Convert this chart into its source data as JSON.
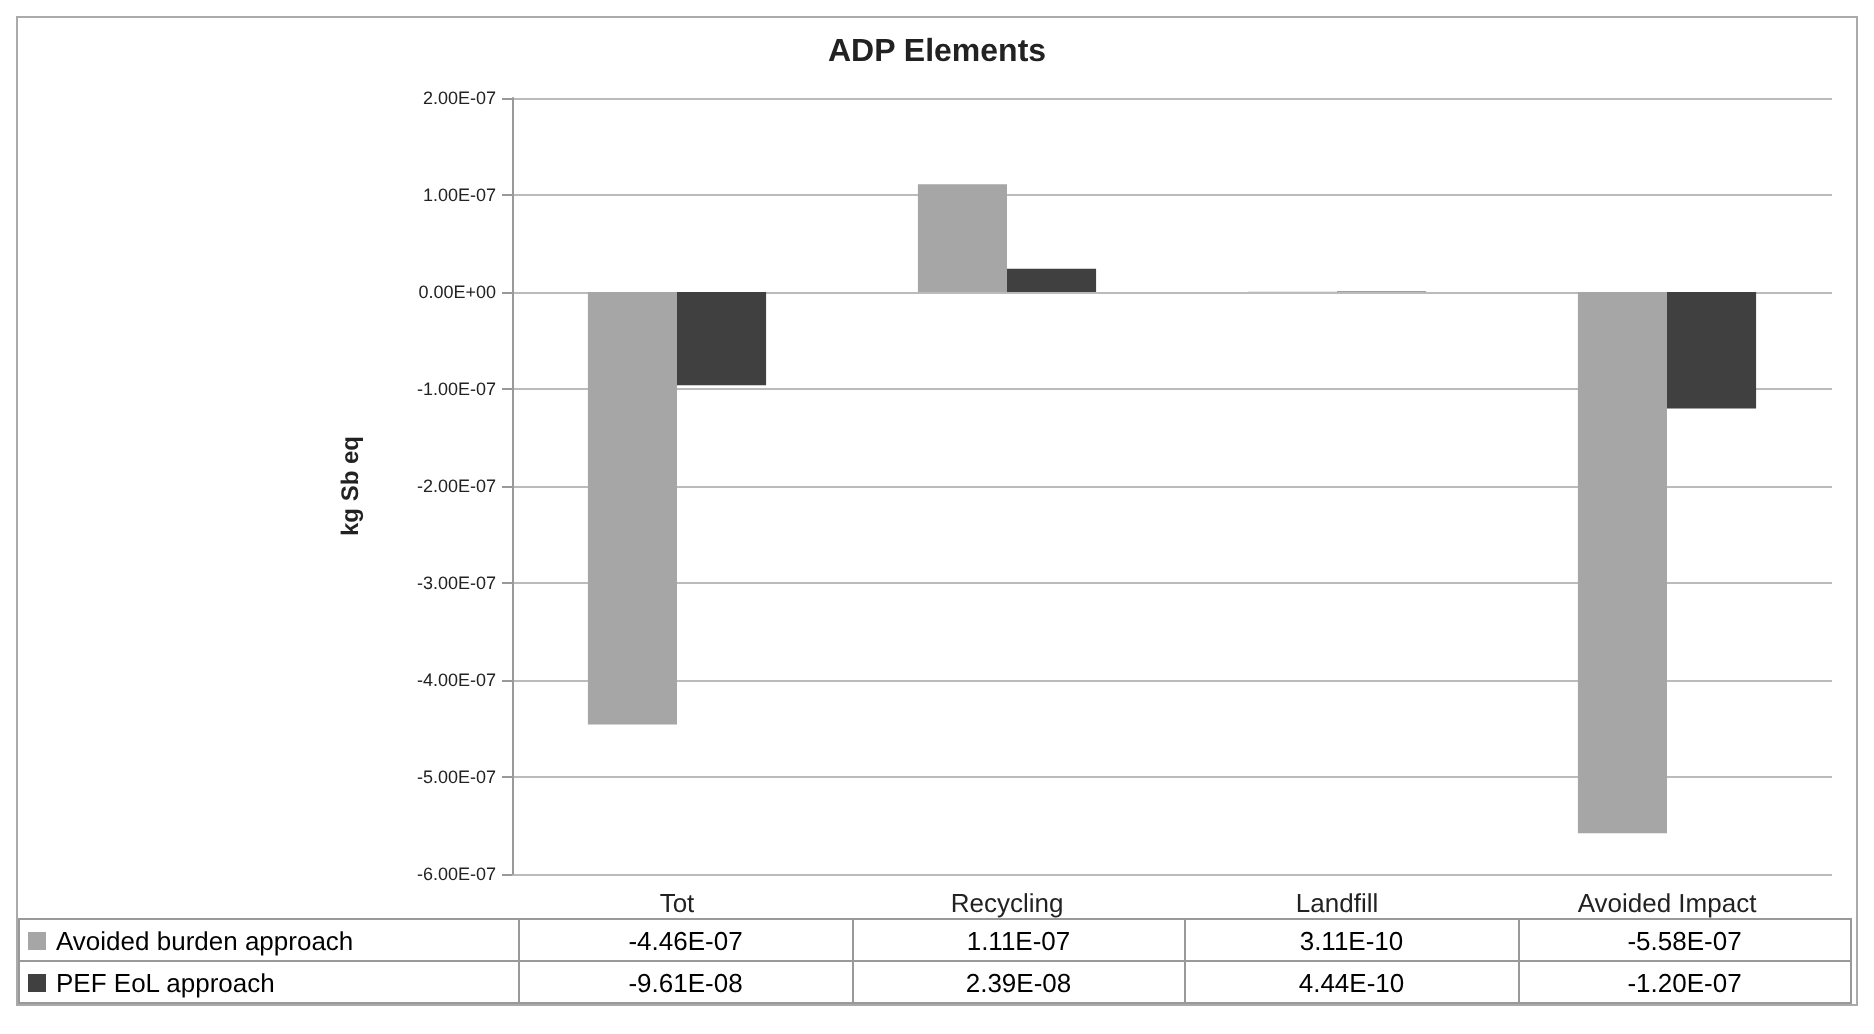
{
  "chart_data": {
    "type": "bar",
    "title": "ADP Elements",
    "ylabel": "kg Sb eq",
    "categories": [
      "Tot",
      "Recycling",
      "Landfill",
      "Avoided Impact"
    ],
    "series": [
      {
        "name": "Avoided burden approach",
        "color": "#a6a6a6",
        "values": [
          -4.46e-07,
          1.11e-07,
          3.11e-10,
          -5.58e-07
        ],
        "value_labels": [
          "-4.46E-07",
          "1.11E-07",
          "3.11E-10",
          "-5.58E-07"
        ]
      },
      {
        "name": "PEF EoL approach",
        "color": "#404040",
        "values": [
          -9.61e-08,
          2.39e-08,
          4.44e-10,
          -1.2e-07
        ],
        "value_labels": [
          "-9.61E-08",
          "2.39E-08",
          "4.44E-10",
          "-1.20E-07"
        ]
      }
    ],
    "ylim": [
      -6e-07,
      2e-07
    ],
    "yticks": [
      {
        "value": -6e-07,
        "label": "-6.00E-07"
      },
      {
        "value": -5e-07,
        "label": "-5.00E-07"
      },
      {
        "value": -4e-07,
        "label": "-4.00E-07"
      },
      {
        "value": -3e-07,
        "label": "-3.00E-07"
      },
      {
        "value": -2e-07,
        "label": "-2.00E-07"
      },
      {
        "value": -1e-07,
        "label": "-1.00E-07"
      },
      {
        "value": 0,
        "label": "0.00E+00"
      },
      {
        "value": 1e-07,
        "label": "1.00E-07"
      },
      {
        "value": 2e-07,
        "label": "2.00E-07"
      }
    ],
    "grid": "y",
    "legend": "bottom"
  }
}
